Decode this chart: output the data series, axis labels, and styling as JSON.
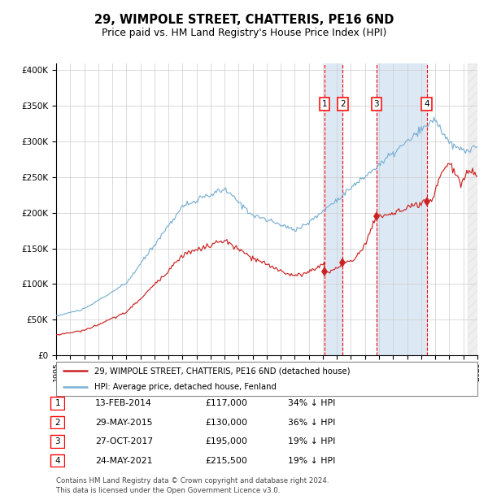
{
  "title": "29, WIMPOLE STREET, CHATTERIS, PE16 6ND",
  "subtitle": "Price paid vs. HM Land Registry's House Price Index (HPI)",
  "legend_line1": "29, WIMPOLE STREET, CHATTERIS, PE16 6ND (detached house)",
  "legend_line2": "HPI: Average price, detached house, Fenland",
  "footer1": "Contains HM Land Registry data © Crown copyright and database right 2024.",
  "footer2": "This data is licensed under the Open Government Licence v3.0.",
  "hpi_color": "#7ab0d4",
  "price_color": "#cc2222",
  "transactions": [
    {
      "num": 1,
      "date": "13-FEB-2014",
      "price": 117000,
      "pct": "34%",
      "year": 2014.12
    },
    {
      "num": 2,
      "date": "29-MAY-2015",
      "price": 130000,
      "pct": "36%",
      "year": 2015.41
    },
    {
      "num": 3,
      "date": "27-OCT-2017",
      "price": 195000,
      "pct": "19%",
      "year": 2017.82
    },
    {
      "num": 4,
      "date": "24-MAY-2021",
      "price": 215500,
      "pct": "19%",
      "year": 2021.4
    }
  ],
  "ylim": [
    0,
    410000
  ],
  "xlim_start": 1995,
  "xlim_end": 2025,
  "background_shading": [
    {
      "start": 2014.12,
      "end": 2015.41
    },
    {
      "start": 2017.82,
      "end": 2021.4
    }
  ],
  "hatch_start": 2024.3,
  "yticks": [
    0,
    50000,
    100000,
    150000,
    200000,
    250000,
    300000,
    350000,
    400000
  ]
}
